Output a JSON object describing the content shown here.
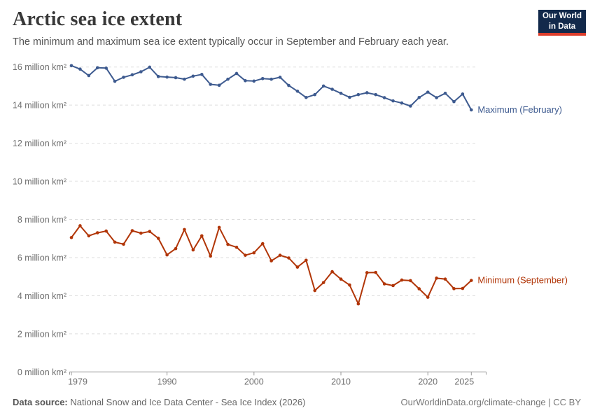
{
  "header": {
    "title": "Arctic sea ice extent",
    "subtitle": "The minimum and maximum sea ice extent typically occur in September and February each year.",
    "logo": {
      "line1": "Our World",
      "line2": "in Data",
      "bg_color": "#12294b",
      "strip_color": "#dc3d2b"
    }
  },
  "footer": {
    "datasource_label": "Data source:",
    "datasource_value": "National Snow and Ice Data Center - Sea Ice Index (2026)",
    "attribution": "OurWorldinData.org/climate-change | CC BY"
  },
  "chart_data": {
    "type": "line",
    "title": "Arctic sea ice extent",
    "xlabel": "",
    "ylabel": "million km²",
    "x": [
      1979,
      1980,
      1981,
      1982,
      1983,
      1984,
      1985,
      1986,
      1987,
      1988,
      1989,
      1990,
      1991,
      1992,
      1993,
      1994,
      1995,
      1996,
      1997,
      1998,
      1999,
      2000,
      2001,
      2002,
      2003,
      2004,
      2005,
      2006,
      2007,
      2008,
      2009,
      2010,
      2011,
      2012,
      2013,
      2014,
      2015,
      2016,
      2017,
      2018,
      2019,
      2020,
      2021,
      2022,
      2023,
      2024,
      2025
    ],
    "series": [
      {
        "name": "Maximum (February)",
        "color": "#3d5a8f",
        "values": [
          16.07,
          15.89,
          15.55,
          15.96,
          15.94,
          15.25,
          15.46,
          15.59,
          15.75,
          15.99,
          15.5,
          15.47,
          15.44,
          15.36,
          15.52,
          15.61,
          15.09,
          15.04,
          15.36,
          15.66,
          15.28,
          15.26,
          15.39,
          15.36,
          15.46,
          15.03,
          14.73,
          14.4,
          14.55,
          15.0,
          14.83,
          14.62,
          14.41,
          14.55,
          14.65,
          14.55,
          14.39,
          14.22,
          14.11,
          13.95,
          14.4,
          14.68,
          14.39,
          14.62,
          14.18,
          14.58,
          13.75
        ]
      },
      {
        "name": "Minimum (September)",
        "color": "#b13507",
        "values": [
          7.05,
          7.67,
          7.14,
          7.3,
          7.39,
          6.81,
          6.7,
          7.41,
          7.28,
          7.37,
          7.01,
          6.14,
          6.47,
          7.47,
          6.4,
          7.14,
          6.08,
          7.58,
          6.69,
          6.54,
          6.12,
          6.25,
          6.73,
          5.83,
          6.12,
          5.98,
          5.5,
          5.86,
          4.27,
          4.69,
          5.26,
          4.87,
          4.56,
          3.57,
          5.21,
          5.22,
          4.62,
          4.53,
          4.82,
          4.79,
          4.36,
          3.92,
          4.92,
          4.87,
          4.37,
          4.38,
          4.8
        ]
      }
    ],
    "xticks": [
      1979,
      1990,
      2000,
      2010,
      2020,
      2025
    ],
    "yticks": [
      0,
      2,
      4,
      6,
      8,
      10,
      12,
      14,
      16
    ],
    "ytick_suffix": " million km²",
    "xlim": [
      1979,
      2026.5
    ],
    "ylim": [
      0,
      16.8
    ],
    "grid": "horizontal-dashed",
    "legend_position": "end-of-line-labels",
    "grid_color": "#dddddd",
    "axis_color": "#999999",
    "tick_label_color": "#6e6e6e"
  }
}
